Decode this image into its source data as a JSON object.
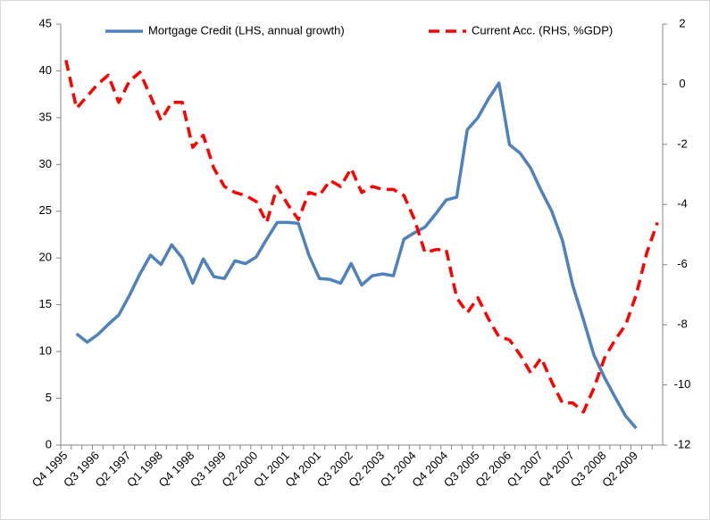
{
  "chart_data": {
    "type": "line",
    "categories": [
      "Q4 1995",
      null,
      null,
      "Q3 1996",
      null,
      null,
      "Q2 1997",
      null,
      null,
      "Q1 1998",
      null,
      null,
      "Q4 1998",
      null,
      null,
      "Q3 1999",
      null,
      null,
      "Q2 2000",
      null,
      null,
      "Q1 2001",
      null,
      null,
      "Q4 2001",
      null,
      null,
      "Q3 2002",
      null,
      null,
      "Q2 2003",
      null,
      null,
      "Q1 2004",
      null,
      null,
      "Q4 2004",
      null,
      null,
      "Q3 2005",
      null,
      null,
      "Q2 2006",
      null,
      null,
      "Q1 2007",
      null,
      null,
      "Q4 2007",
      null,
      null,
      "Q3 2008",
      null,
      null,
      "Q2 2009",
      null,
      null
    ],
    "series": [
      {
        "name": "Mortgage Credit (LHS, annual growth)",
        "color": "#4f81bd",
        "line_style": "solid",
        "values": [
          null,
          11.9,
          11.0,
          11.8,
          12.9,
          13.9,
          16.0,
          18.3,
          20.3,
          19.3,
          21.4,
          20.0,
          17.3,
          19.9,
          18.0,
          17.8,
          19.7,
          19.4,
          20.1,
          22.0,
          23.8,
          23.8,
          23.7,
          20.3,
          17.8,
          17.7,
          17.3,
          19.4,
          17.1,
          18.1,
          18.3,
          18.1,
          22.0,
          22.7,
          23.3,
          24.7,
          26.2,
          26.5,
          33.7,
          35.0,
          37.0,
          38.7,
          32.1,
          31.2,
          29.6,
          27.2,
          25.0,
          21.9,
          17.0,
          13.4,
          9.6,
          7.2,
          5.1,
          3.1,
          1.8,
          null,
          null
        ]
      },
      {
        "name": "Current Acc. (RHS, %GDP)",
        "color": "#ff0000",
        "line_style": "dashed",
        "axis": "y2",
        "values": [
          0.8,
          -0.8,
          -0.4,
          0.0,
          0.3,
          -0.6,
          0.1,
          0.4,
          -0.4,
          -1.2,
          -0.6,
          -0.6,
          -2.1,
          -1.7,
          -2.8,
          -3.4,
          -3.6,
          -3.7,
          -3.9,
          -4.6,
          -3.4,
          -4.0,
          -4.5,
          -3.6,
          -3.7,
          -3.2,
          -3.4,
          -2.8,
          -3.6,
          -3.4,
          -3.5,
          -3.5,
          -3.7,
          -4.5,
          -5.6,
          -5.5,
          -5.5,
          -7.1,
          -7.6,
          -7.1,
          -7.8,
          -8.4,
          -8.5,
          -9.0,
          -9.6,
          -9.1,
          -9.9,
          -10.6,
          -10.6,
          -10.9,
          -10.1,
          -9.1,
          -8.5,
          -8.0,
          -7.0,
          -5.6,
          -4.6
        ]
      }
    ],
    "ylim": [
      0,
      45
    ],
    "yticks": [
      0,
      5,
      10,
      15,
      20,
      25,
      30,
      35,
      40,
      45
    ],
    "y2lim": [
      -12,
      2
    ],
    "y2ticks": [
      -12,
      -10,
      -8,
      -6,
      -4,
      -2,
      0,
      2
    ],
    "legend": "top",
    "grid": false
  }
}
